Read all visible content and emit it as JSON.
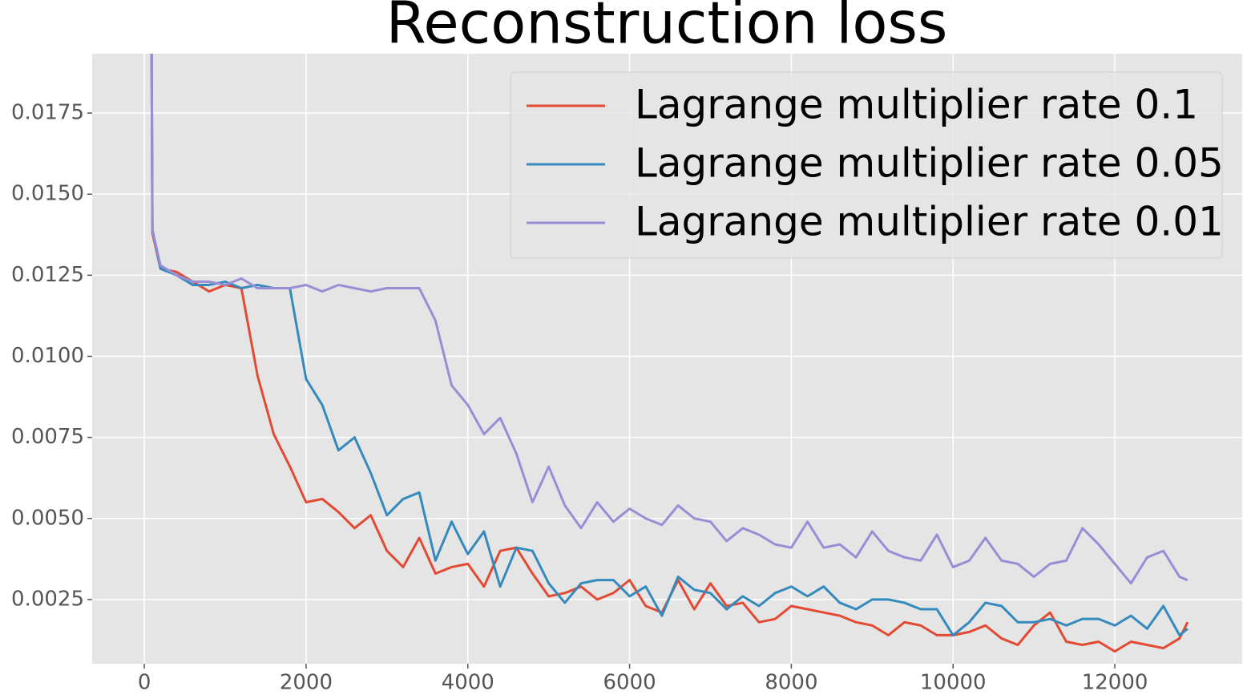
{
  "chart_data": {
    "type": "line",
    "title": "Reconstruction loss",
    "x": [
      80,
      100,
      200,
      400,
      600,
      800,
      1000,
      1200,
      1400,
      1600,
      1800,
      2000,
      2200,
      2400,
      2600,
      2800,
      3000,
      3200,
      3400,
      3600,
      3800,
      4000,
      4200,
      4400,
      4600,
      4800,
      5000,
      5200,
      5400,
      5600,
      5800,
      6000,
      6200,
      6400,
      6600,
      6800,
      7000,
      7200,
      7400,
      7600,
      7800,
      8000,
      8200,
      8400,
      8600,
      8800,
      9000,
      9200,
      9400,
      9600,
      9800,
      10000,
      10200,
      10400,
      10600,
      10800,
      11000,
      11200,
      11400,
      11600,
      11800,
      12000,
      12200,
      12400,
      12600,
      12800,
      12900
    ],
    "series": [
      {
        "name": "Lagrange multiplier rate 0.1",
        "color": "#E24A33",
        "values": [
          0.025,
          0.0138,
          0.0127,
          0.0126,
          0.0123,
          0.012,
          0.0122,
          0.0121,
          0.0094,
          0.0076,
          0.0066,
          0.0055,
          0.0056,
          0.0052,
          0.0047,
          0.0051,
          0.004,
          0.0035,
          0.0044,
          0.0033,
          0.0035,
          0.0036,
          0.0029,
          0.004,
          0.0041,
          0.0033,
          0.0026,
          0.0027,
          0.0029,
          0.0025,
          0.0027,
          0.0031,
          0.0023,
          0.0021,
          0.0031,
          0.0022,
          0.003,
          0.0023,
          0.0024,
          0.0018,
          0.0019,
          0.0023,
          0.0022,
          0.0021,
          0.002,
          0.0018,
          0.0017,
          0.0014,
          0.0018,
          0.0017,
          0.0014,
          0.0014,
          0.0015,
          0.0017,
          0.0013,
          0.0011,
          0.0017,
          0.0021,
          0.0012,
          0.0011,
          0.0012,
          0.0009,
          0.0012,
          0.0011,
          0.001,
          0.0013,
          0.0018
        ]
      },
      {
        "name": "Lagrange multiplier rate 0.05",
        "color": "#348ABD",
        "values": [
          0.025,
          0.0139,
          0.0127,
          0.0125,
          0.0122,
          0.0122,
          0.0123,
          0.0121,
          0.0122,
          0.0121,
          0.0121,
          0.0093,
          0.0085,
          0.0071,
          0.0075,
          0.0064,
          0.0051,
          0.0056,
          0.0058,
          0.0037,
          0.0049,
          0.0039,
          0.0046,
          0.0029,
          0.0041,
          0.004,
          0.003,
          0.0024,
          0.003,
          0.0031,
          0.0031,
          0.0026,
          0.0029,
          0.002,
          0.0032,
          0.0028,
          0.0027,
          0.0022,
          0.0026,
          0.0023,
          0.0027,
          0.0029,
          0.0026,
          0.0029,
          0.0024,
          0.0022,
          0.0025,
          0.0025,
          0.0024,
          0.0022,
          0.0022,
          0.0014,
          0.0018,
          0.0024,
          0.0023,
          0.0018,
          0.0018,
          0.0019,
          0.0017,
          0.0019,
          0.0019,
          0.0017,
          0.002,
          0.0016,
          0.0023,
          0.0014,
          0.0016
        ]
      },
      {
        "name": "Lagrange multiplier rate 0.01",
        "color": "#988ED5",
        "values": [
          0.025,
          0.0139,
          0.0128,
          0.0125,
          0.0123,
          0.0123,
          0.0122,
          0.0124,
          0.0121,
          0.0121,
          0.0121,
          0.0122,
          0.012,
          0.0122,
          0.0121,
          0.012,
          0.0121,
          0.0121,
          0.0121,
          0.0111,
          0.0091,
          0.0085,
          0.0076,
          0.0081,
          0.007,
          0.0055,
          0.0066,
          0.0054,
          0.0047,
          0.0055,
          0.0049,
          0.0053,
          0.005,
          0.0048,
          0.0054,
          0.005,
          0.0049,
          0.0043,
          0.0047,
          0.0045,
          0.0042,
          0.0041,
          0.0049,
          0.0041,
          0.0042,
          0.0038,
          0.0046,
          0.004,
          0.0038,
          0.0037,
          0.0045,
          0.0035,
          0.0037,
          0.0044,
          0.0037,
          0.0036,
          0.0032,
          0.0036,
          0.0037,
          0.0047,
          0.0042,
          0.0036,
          0.003,
          0.0038,
          0.004,
          0.0032,
          0.0031
        ]
      }
    ],
    "xlim": [
      -645,
      13575
    ],
    "ylim": [
      0.00052,
      0.01933
    ],
    "xticks": [
      0,
      2000,
      4000,
      6000,
      8000,
      10000,
      12000
    ],
    "yticks": [
      0.0025,
      {
        "value": 0.005,
        "label": "0.0050"
      },
      0.0075,
      {
        "value": 0.01,
        "label": "0.0100"
      },
      0.0125,
      {
        "value": 0.015,
        "label": "0.0150"
      },
      0.0175
    ],
    "grid": true,
    "legend": "upper right"
  }
}
